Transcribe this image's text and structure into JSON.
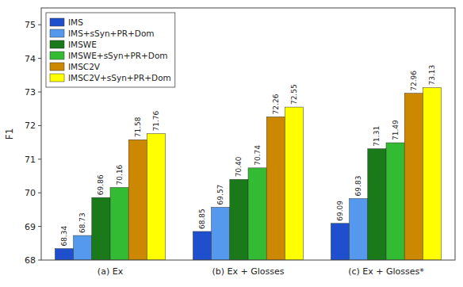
{
  "chart_data": {
    "type": "bar",
    "y_label": "F1",
    "categories": [
      "(a) Ex",
      "(b) Ex + Glosses",
      "(c) Ex + Glosses*"
    ],
    "series": [
      {
        "name": "IMS",
        "color": "#1F4FCC",
        "values": [
          68.34,
          68.85,
          69.09
        ],
        "value_labels": [
          "68.34",
          "68.85",
          "69.09"
        ]
      },
      {
        "name": "IMS+sSyn+PR+Dom",
        "color": "#5599EE",
        "values": [
          68.73,
          69.57,
          69.83
        ],
        "value_labels": [
          "68.73",
          "69.57",
          "69.83"
        ]
      },
      {
        "name": "IMSWE",
        "color": "#1A7A1A",
        "values": [
          69.86,
          70.4,
          71.31
        ],
        "value_labels": [
          "69.86",
          "70.40",
          "71.31"
        ]
      },
      {
        "name": "IMSWE+sSyn+PR+Dom",
        "color": "#33BB33",
        "values": [
          70.16,
          70.74,
          71.49
        ],
        "value_labels": [
          "70.16",
          "70.74",
          "71.49"
        ]
      },
      {
        "name": "IMSC2V",
        "color": "#CC8800",
        "values": [
          71.58,
          72.26,
          72.96
        ],
        "value_labels": [
          "71.58",
          "72.26",
          "72.96"
        ]
      },
      {
        "name": "IMSC2V+sSyn+PR+Dom",
        "color": "#FFFF00",
        "values": [
          71.76,
          72.55,
          73.13
        ],
        "value_labels": [
          "71.76",
          "72.55",
          "73.13"
        ]
      }
    ],
    "ylim": [
      68,
      75.5
    ],
    "yticks": [
      68,
      69,
      70,
      71,
      72,
      73,
      74,
      75
    ],
    "grid": false,
    "legend": "upper left",
    "data_labels": true
  }
}
